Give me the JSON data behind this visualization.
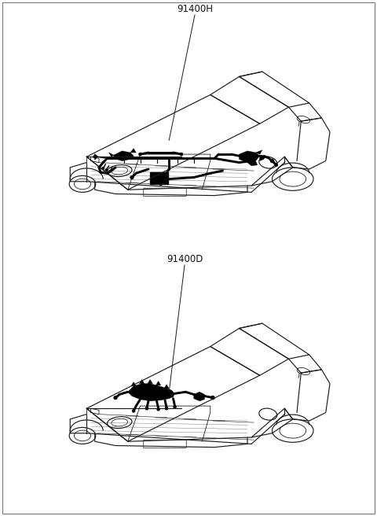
{
  "background_color": "#ffffff",
  "label_top": "91400H",
  "label_bottom": "91400D",
  "line_color": "#1a1a1a",
  "wire_color": "#000000",
  "fig_width": 4.8,
  "fig_height": 6.56,
  "dpi": 100,
  "border_color": "#777777"
}
